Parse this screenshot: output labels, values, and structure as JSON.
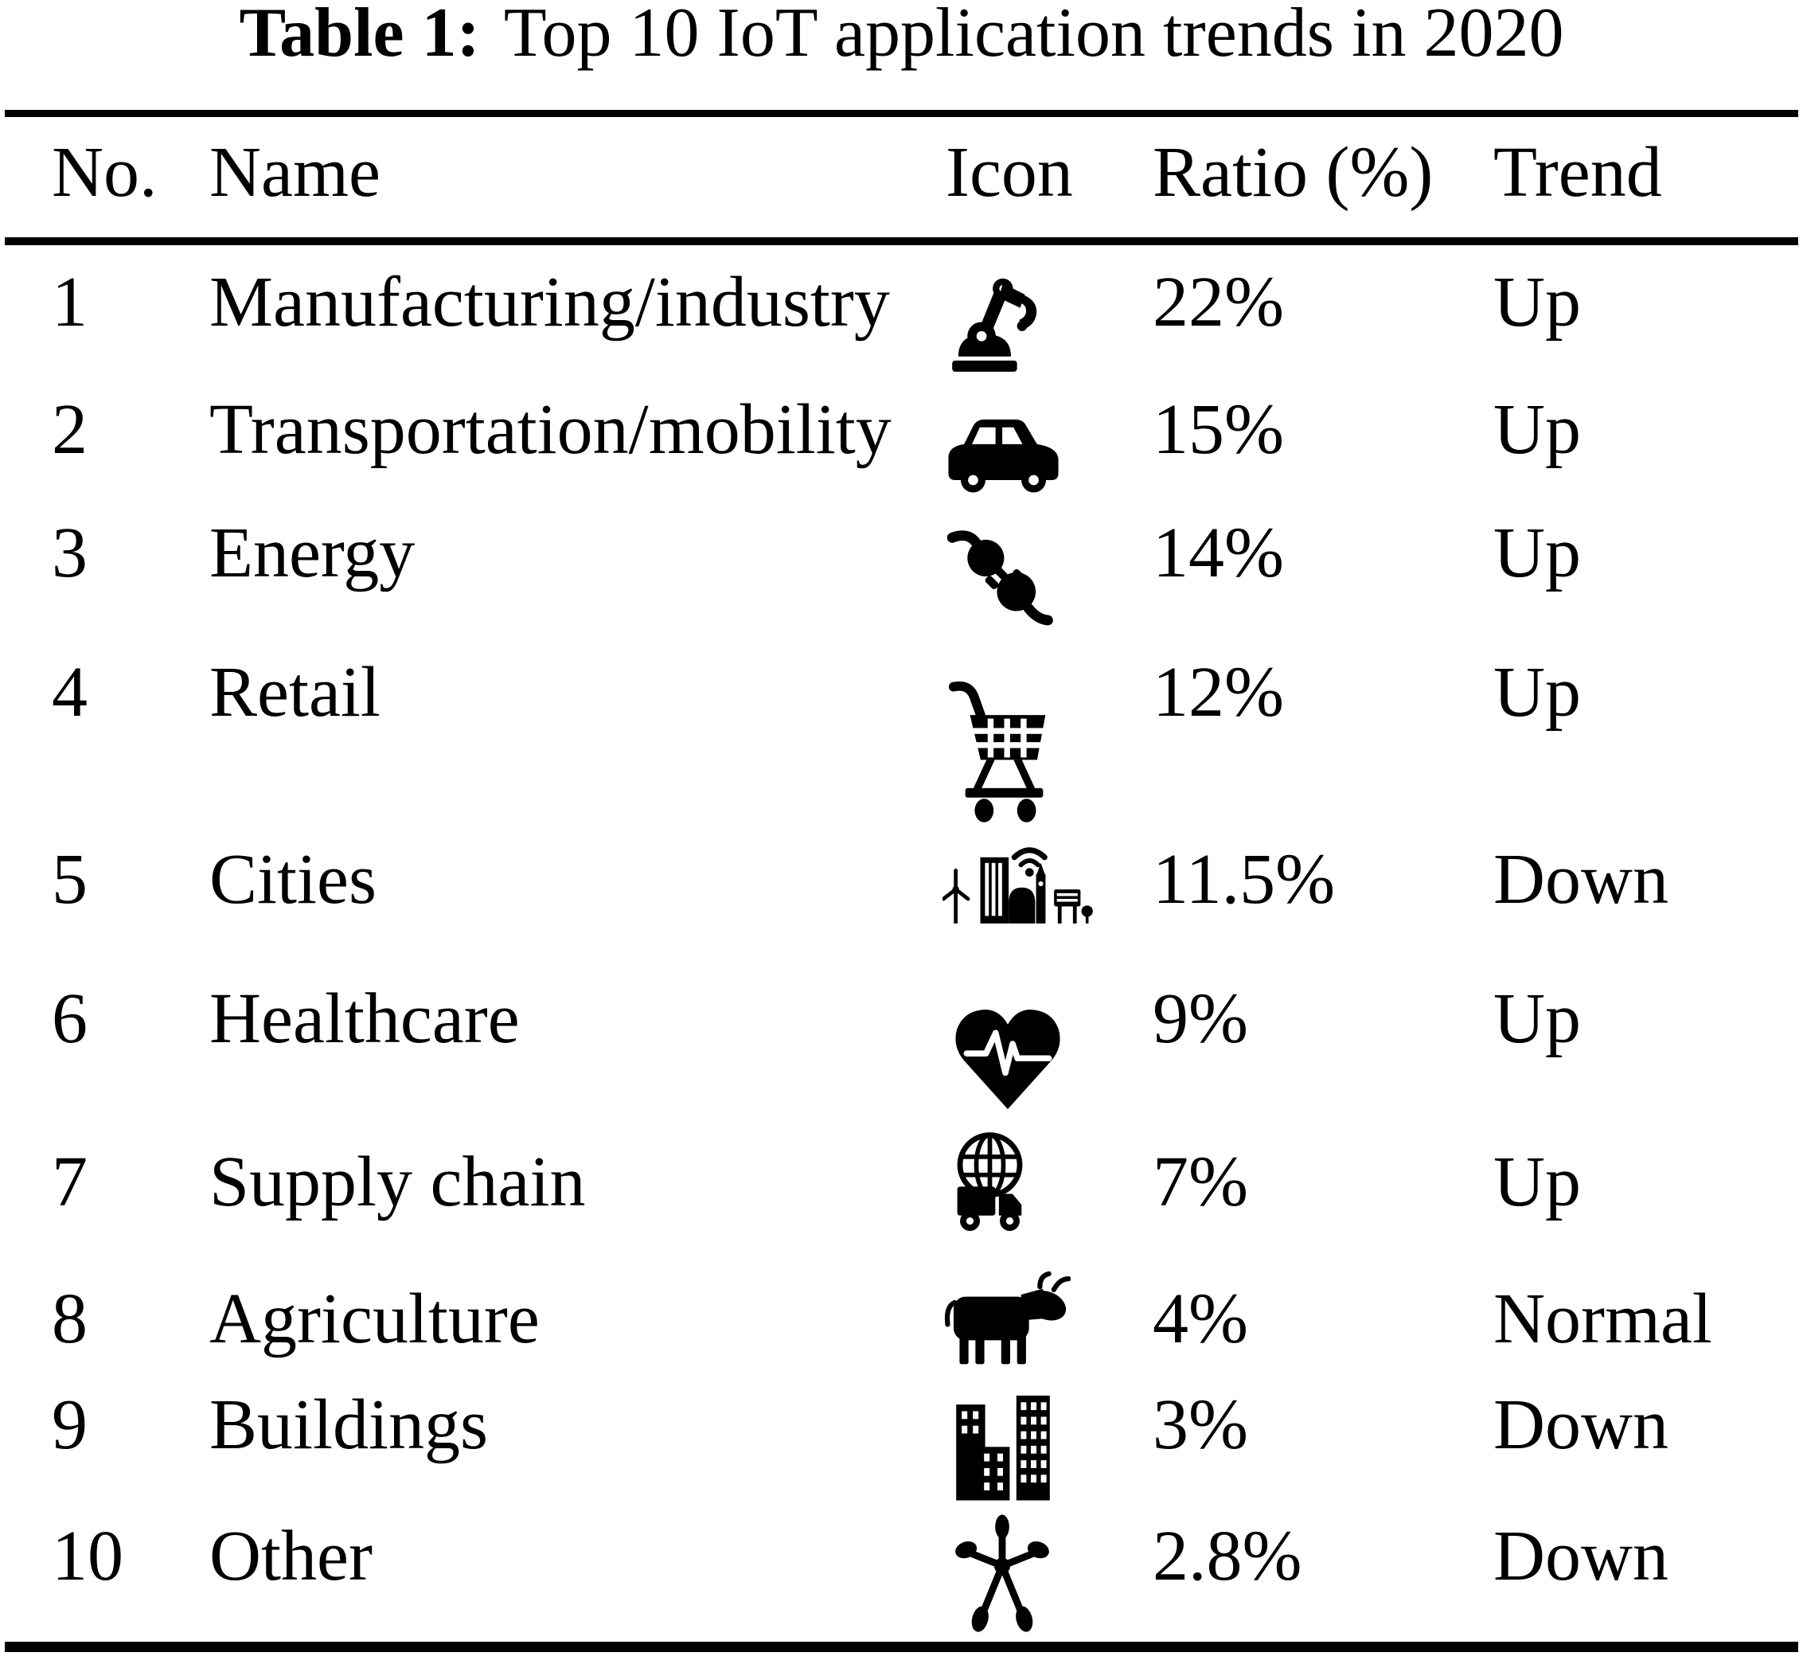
{
  "title": {
    "label": "Table 1:",
    "text": "Top 10 IoT application trends in 2020"
  },
  "table": {
    "columns": [
      "No.",
      "Name",
      "Icon",
      "Ratio (%)",
      "Trend"
    ],
    "rows": [
      {
        "no": "1",
        "name": "Manufacturing/industry",
        "icon": "robot-arm-icon",
        "ratio": "22%",
        "trend": "Up"
      },
      {
        "no": "2",
        "name": "Transportation/mobility",
        "icon": "car-icon",
        "ratio": "15%",
        "trend": "Up"
      },
      {
        "no": "3",
        "name": "Energy",
        "icon": "power-plug-icon",
        "ratio": "14%",
        "trend": "Up"
      },
      {
        "no": "4",
        "name": "Retail",
        "icon": "shopping-cart-icon",
        "ratio": "12%",
        "trend": "Up"
      },
      {
        "no": "5",
        "name": "Cities",
        "icon": "smart-city-icon",
        "ratio": "11.5%",
        "trend": "Down"
      },
      {
        "no": "6",
        "name": "Healthcare",
        "icon": "heart-pulse-icon",
        "ratio": "9%",
        "trend": "Up"
      },
      {
        "no": "7",
        "name": "Supply chain",
        "icon": "globe-truck-icon",
        "ratio": "7%",
        "trend": "Up"
      },
      {
        "no": "8",
        "name": "Agriculture",
        "icon": "cow-icon",
        "ratio": "4%",
        "trend": "Normal"
      },
      {
        "no": "9",
        "name": "Buildings",
        "icon": "buildings-icon",
        "ratio": "3%",
        "trend": "Down"
      },
      {
        "no": "10",
        "name": "Other",
        "icon": "network-nodes-icon",
        "ratio": "2.8%",
        "trend": "Down"
      }
    ]
  },
  "chart_data": {
    "type": "table",
    "title": "Table 1: Top 10 IoT application trends in 2020",
    "categories": [
      "Manufacturing/industry",
      "Transportation/mobility",
      "Energy",
      "Retail",
      "Cities",
      "Healthcare",
      "Supply chain",
      "Agriculture",
      "Buildings",
      "Other"
    ],
    "values": [
      22,
      15,
      14,
      12,
      11.5,
      9,
      7,
      4,
      3,
      2.8
    ],
    "value_unit": "%",
    "trends": [
      "Up",
      "Up",
      "Up",
      "Up",
      "Down",
      "Up",
      "Up",
      "Normal",
      "Down",
      "Down"
    ]
  },
  "colors": {
    "ink": "#000000",
    "paper": "#ffffff"
  }
}
